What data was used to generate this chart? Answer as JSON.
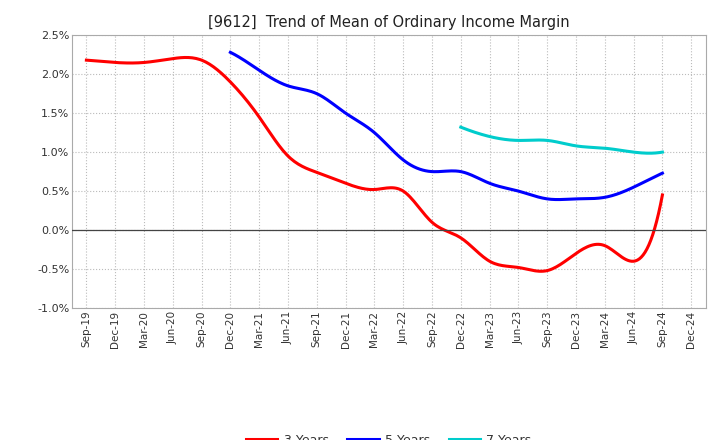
{
  "title": "[9612]  Trend of Mean of Ordinary Income Margin",
  "ylim": [
    -0.01,
    0.025
  ],
  "yticks": [
    -0.01,
    -0.005,
    0.0,
    0.005,
    0.01,
    0.015,
    0.02,
    0.025
  ],
  "background_color": "#ffffff",
  "plot_bg_color": "#ffffff",
  "grid_color": "#bbbbbb",
  "x_labels": [
    "Sep-19",
    "Dec-19",
    "Mar-20",
    "Jun-20",
    "Sep-20",
    "Dec-20",
    "Mar-21",
    "Jun-21",
    "Sep-21",
    "Dec-21",
    "Mar-22",
    "Jun-22",
    "Sep-22",
    "Dec-22",
    "Mar-23",
    "Jun-23",
    "Sep-23",
    "Dec-23",
    "Mar-24",
    "Jun-24",
    "Sep-24",
    "Dec-24"
  ],
  "series": {
    "3 Years": {
      "color": "#ff0000",
      "linewidth": 2.2,
      "data": [
        0.0218,
        0.0215,
        0.0215,
        0.022,
        0.0218,
        0.019,
        0.0145,
        0.0095,
        0.0074,
        0.006,
        0.0052,
        0.005,
        0.001,
        -0.001,
        -0.004,
        -0.0048,
        -0.0052,
        -0.003,
        -0.002,
        -0.004,
        0.0045,
        null
      ]
    },
    "5 Years": {
      "color": "#0000ff",
      "linewidth": 2.2,
      "data": [
        null,
        null,
        null,
        null,
        null,
        0.0228,
        0.0205,
        0.0185,
        0.0175,
        0.015,
        0.0125,
        0.009,
        0.0075,
        0.0075,
        0.006,
        0.005,
        0.004,
        0.004,
        0.0042,
        0.0055,
        0.0073,
        null
      ]
    },
    "7 Years": {
      "color": "#00cccc",
      "linewidth": 2.2,
      "data": [
        null,
        null,
        null,
        null,
        null,
        null,
        null,
        null,
        null,
        null,
        null,
        null,
        null,
        0.0132,
        0.012,
        0.0115,
        0.0115,
        0.0108,
        0.0105,
        0.01,
        0.01,
        null
      ]
    },
    "10 Years": {
      "color": "#008000",
      "linewidth": 2.2,
      "data": [
        null,
        null,
        null,
        null,
        null,
        null,
        null,
        null,
        null,
        null,
        null,
        null,
        null,
        null,
        null,
        null,
        null,
        null,
        null,
        null,
        null,
        null
      ]
    }
  }
}
